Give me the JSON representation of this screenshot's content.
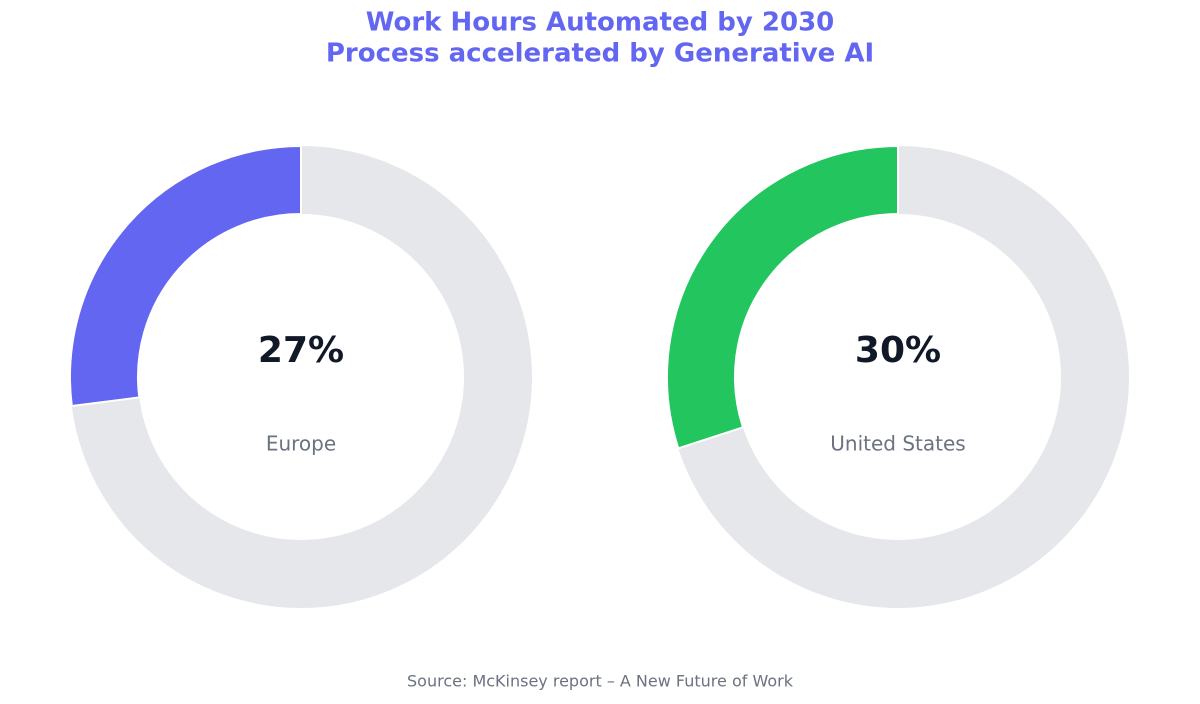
{
  "title": "Work Hours Automated by 2030",
  "subtitle": "Process accelerated by Generative AI",
  "source": "Source: McKinsey report – A New Future of Work",
  "chart_data": [
    {
      "type": "donut",
      "label": "Europe",
      "value": 27,
      "value_label": "27%",
      "total": 100,
      "color": "#6366f1",
      "track_color": "#e5e7eb"
    },
    {
      "type": "donut",
      "label": "United States",
      "value": 30,
      "value_label": "30%",
      "total": 100,
      "color": "#22c55e",
      "track_color": "#e5e7eb"
    }
  ]
}
